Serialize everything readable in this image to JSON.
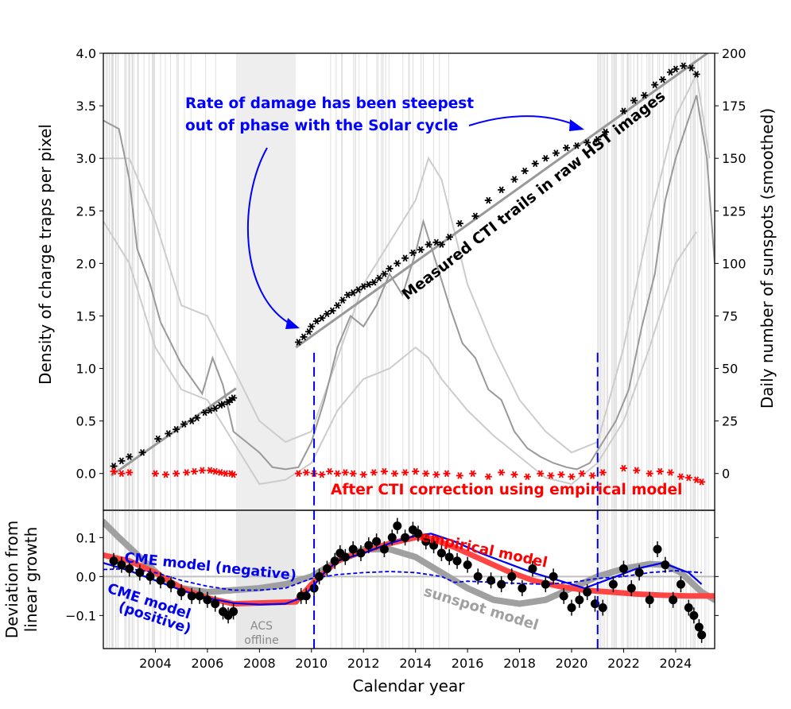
{
  "chart_data": [
    {
      "panel": "top",
      "type": "scatter",
      "xlabel": "",
      "ylabel": "Density of charge traps per pixel",
      "y2label": "Daily number of sunspots (smoothed)",
      "xlim": [
        2002.0,
        2025.5
      ],
      "ylim": [
        -0.35,
        4.0
      ],
      "y2lim": [
        -17.5,
        200
      ],
      "yticks": [
        0.0,
        0.5,
        1.0,
        1.5,
        2.0,
        2.5,
        3.0,
        3.5,
        4.0
      ],
      "ytick_labels": [
        "0.0",
        "0.5",
        "1.0",
        "1.5",
        "2.0",
        "2.5",
        "3.0",
        "3.5",
        "4.0"
      ],
      "y2ticks": [
        0,
        25,
        50,
        75,
        100,
        125,
        150,
        175,
        200
      ],
      "y2tick_labels": [
        "0",
        "25",
        "50",
        "75",
        "100",
        "125",
        "150",
        "175",
        "200"
      ],
      "annotations": {
        "damage_line1": "Rate of damage has been steepest",
        "damage_line2": "out of phase with the Solar cycle",
        "measured": "Measured CTI trails in raw HST images",
        "corrected": "After CTI correction using empirical model"
      },
      "colors": {
        "measured": "#000000",
        "corrected": "#ff0000",
        "annotation": "#0000ff",
        "sunspot": "#999999",
        "sunspot_envelope": "#cccccc",
        "offline_band": "#eeeeee"
      },
      "acs_offline": [
        2007.1,
        2009.4
      ],
      "dashed_lines": [
        2010.1,
        2021.0
      ],
      "trend_lines": [
        {
          "x": [
            2002.3,
            2007.1
          ],
          "y": [
            -0.02,
            0.81
          ]
        },
        {
          "x": [
            2009.4,
            2025.5
          ],
          "y": [
            1.2,
            4.05
          ]
        }
      ],
      "sunspot_smoothed": {
        "x": [
          2002.0,
          2002.6,
          2003.0,
          2003.3,
          2003.8,
          2004.2,
          2004.6,
          2005.0,
          2005.4,
          2005.8,
          2006.2,
          2006.6,
          2007.0,
          2007.5,
          2008.0,
          2008.5,
          2009.0,
          2009.5,
          2010.0,
          2010.5,
          2011.0,
          2011.5,
          2012.0,
          2012.5,
          2013.0,
          2013.5,
          2014.0,
          2014.3,
          2014.8,
          2015.3,
          2015.8,
          2016.3,
          2016.8,
          2017.3,
          2017.8,
          2018.3,
          2018.8,
          2019.3,
          2019.8,
          2020.2,
          2020.7,
          2021.2,
          2021.7,
          2022.2,
          2022.7,
          2023.2,
          2023.6,
          2024.0,
          2024.4,
          2024.8,
          2025.2,
          2025.5
        ],
        "y": [
          168,
          164,
          140,
          107,
          90,
          72,
          62,
          52,
          45,
          38,
          55,
          42,
          20,
          15,
          10,
          3,
          2,
          3,
          15,
          35,
          60,
          75,
          70,
          80,
          95,
          85,
          105,
          120,
          100,
          80,
          62,
          55,
          40,
          35,
          20,
          12,
          8,
          5,
          3,
          2,
          5,
          15,
          25,
          40,
          70,
          95,
          130,
          150,
          165,
          180,
          150,
          100
        ]
      },
      "sunspot_envelope_upper": {
        "x": [
          2002.0,
          2003.0,
          2004.0,
          2005.0,
          2006.0,
          2007.0,
          2008.0,
          2009.0,
          2010.0,
          2011.0,
          2012.0,
          2013.0,
          2014.0,
          2014.5,
          2015.0,
          2016.0,
          2017.0,
          2018.0,
          2019.0,
          2020.0,
          2021.0,
          2022.0,
          2023.0,
          2024.0,
          2024.8,
          2025.3
        ],
        "y": [
          150,
          150,
          120,
          80,
          75,
          50,
          25,
          15,
          20,
          55,
          90,
          110,
          130,
          150,
          140,
          90,
          60,
          35,
          20,
          10,
          15,
          60,
          120,
          170,
          190,
          150
        ]
      },
      "sunspot_envelope_lower": {
        "x": [
          2002.0,
          2003.0,
          2004.0,
          2005.0,
          2006.0,
          2007.0,
          2008.0,
          2009.0,
          2010.0,
          2011.0,
          2012.0,
          2013.0,
          2014.0,
          2014.5,
          2015.0,
          2016.0,
          2017.0,
          2018.0,
          2019.0,
          2020.0,
          2021.0,
          2022.0,
          2023.0,
          2024.0,
          2024.8
        ],
        "y": [
          120,
          100,
          60,
          40,
          35,
          15,
          -5,
          -3,
          5,
          30,
          45,
          50,
          60,
          55,
          45,
          30,
          18,
          8,
          -2,
          -5,
          5,
          25,
          60,
          100,
          115
        ]
      },
      "measured_points": {
        "x": [
          2002.4,
          2002.7,
          2003.0,
          2003.5,
          2004.1,
          2004.5,
          2004.8,
          2005.1,
          2005.4,
          2005.6,
          2005.9,
          2006.1,
          2006.3,
          2006.5,
          2006.6,
          2006.8,
          2006.9,
          2007.0,
          2009.5,
          2009.7,
          2009.9,
          2010.0,
          2010.2,
          2010.4,
          2010.6,
          2010.8,
          2011.0,
          2011.2,
          2011.4,
          2011.6,
          2011.8,
          2012.0,
          2012.2,
          2012.4,
          2012.6,
          2012.8,
          2013.0,
          2013.3,
          2013.6,
          2013.9,
          2014.2,
          2014.5,
          2014.8,
          2015.0,
          2015.3,
          2015.7,
          2016.3,
          2016.8,
          2017.3,
          2017.8,
          2018.2,
          2018.6,
          2019.0,
          2019.4,
          2019.8,
          2020.2,
          2020.6,
          2021.0,
          2021.3,
          2022.0,
          2022.4,
          2022.8,
          2023.2,
          2023.5,
          2023.8,
          2024.0,
          2024.3,
          2024.6,
          2024.8
        ],
        "y": [
          0.07,
          0.12,
          0.16,
          0.2,
          0.33,
          0.38,
          0.42,
          0.47,
          0.5,
          0.53,
          0.58,
          0.6,
          0.62,
          0.65,
          0.66,
          0.68,
          0.7,
          0.72,
          1.25,
          1.3,
          1.35,
          1.4,
          1.45,
          1.48,
          1.52,
          1.55,
          1.6,
          1.65,
          1.7,
          1.72,
          1.75,
          1.78,
          1.8,
          1.82,
          1.86,
          1.9,
          1.95,
          2.0,
          2.05,
          2.1,
          2.13,
          2.18,
          2.2,
          2.18,
          2.25,
          2.38,
          2.45,
          2.6,
          2.7,
          2.8,
          2.88,
          2.95,
          3.0,
          3.05,
          3.1,
          3.12,
          3.15,
          3.18,
          3.25,
          3.45,
          3.55,
          3.6,
          3.7,
          3.75,
          3.82,
          3.85,
          3.88,
          3.86,
          3.8
        ]
      },
      "corrected_points": {
        "x": [
          2002.4,
          2002.7,
          2003.0,
          2004.0,
          2004.4,
          2004.8,
          2005.2,
          2005.5,
          2005.8,
          2006.1,
          2006.3,
          2006.5,
          2006.7,
          2006.9,
          2007.0,
          2009.5,
          2009.8,
          2010.1,
          2010.4,
          2010.7,
          2011.0,
          2011.3,
          2011.6,
          2012.0,
          2012.4,
          2012.8,
          2013.2,
          2013.6,
          2014.0,
          2014.4,
          2014.8,
          2015.2,
          2015.7,
          2016.2,
          2016.8,
          2017.3,
          2017.8,
          2018.3,
          2018.8,
          2019.2,
          2019.6,
          2020.0,
          2020.4,
          2020.8,
          2021.2,
          2022.0,
          2022.5,
          2023.0,
          2023.4,
          2023.8,
          2024.2,
          2024.5,
          2024.8,
          2025.0
        ],
        "y": [
          0.02,
          0.0,
          0.01,
          0.0,
          -0.01,
          0.0,
          0.01,
          0.02,
          0.03,
          0.03,
          0.02,
          0.01,
          0.0,
          0.0,
          -0.01,
          0.0,
          0.01,
          0.0,
          -0.01,
          0.02,
          0.0,
          0.01,
          0.0,
          -0.01,
          0.01,
          0.02,
          0.0,
          0.01,
          0.02,
          0.0,
          -0.01,
          0.0,
          -0.02,
          0.0,
          -0.03,
          0.01,
          -0.01,
          -0.03,
          0.0,
          -0.02,
          -0.01,
          -0.03,
          0.0,
          -0.02,
          0.01,
          0.05,
          0.03,
          0.0,
          0.02,
          0.01,
          -0.03,
          -0.04,
          -0.06,
          -0.08
        ]
      }
    },
    {
      "panel": "bottom",
      "type": "scatter",
      "xlabel": "Calendar year",
      "ylabel_line1": "Deviation from",
      "ylabel_line2": "linear growth",
      "xlim": [
        2002.0,
        2025.5
      ],
      "ylim": [
        -0.185,
        0.17
      ],
      "xticks": [
        2004,
        2006,
        2008,
        2010,
        2012,
        2014,
        2016,
        2018,
        2020,
        2022,
        2024
      ],
      "xtick_labels": [
        "2004",
        "2006",
        "2008",
        "2010",
        "2012",
        "2014",
        "2016",
        "2018",
        "2020",
        "2022",
        "2024"
      ],
      "yticks": [
        -0.1,
        0.0,
        0.1
      ],
      "ytick_labels": [
        "−0.1",
        "0.0",
        "0.1"
      ],
      "labels": {
        "empirical": "empirical model",
        "sunspot": "sunspot model",
        "cme_neg": "CME model (negative)",
        "cme_pos_1": "CME model",
        "cme_pos_2": "(positive)",
        "acs_1": "ACS",
        "acs_2": "offline"
      },
      "colors": {
        "empirical": "#ff4444",
        "sunspot": "#a0a0a0",
        "cme": "#0000ee",
        "points": "#000000",
        "offline_band": "#e8e8e8"
      },
      "acs_offline": [
        2007.1,
        2009.4
      ],
      "dashed_lines": [
        2010.1,
        2021.0
      ],
      "series": [
        {
          "name": "empirical model",
          "x": [
            2002.0,
            2003.0,
            2004.0,
            2005.0,
            2006.0,
            2007.0,
            2009.4,
            2010.0,
            2011.0,
            2012.0,
            2013.0,
            2014.0,
            2014.5,
            2015.5,
            2016.5,
            2017.5,
            2018.5,
            2019.5,
            2020.5,
            2021.5,
            2022.5,
            2023.5,
            2024.5,
            2025.5
          ],
          "y": [
            0.055,
            0.04,
            0.01,
            -0.03,
            -0.055,
            -0.07,
            -0.065,
            -0.02,
            0.04,
            0.065,
            0.085,
            0.1,
            0.1,
            0.075,
            0.045,
            0.015,
            -0.01,
            -0.025,
            -0.035,
            -0.04,
            -0.045,
            -0.048,
            -0.05,
            -0.05
          ]
        },
        {
          "name": "sunspot model",
          "x": [
            2002.0,
            2002.6,
            2003.4,
            2004.2,
            2005.0,
            2006.0,
            2007.0,
            2008.0,
            2009.0,
            2010.0,
            2011.0,
            2012.0,
            2013.0,
            2014.0,
            2015.0,
            2016.0,
            2017.0,
            2018.0,
            2019.0,
            2020.0,
            2021.0,
            2022.0,
            2023.0,
            2023.6,
            2024.2,
            2025.0,
            2025.5
          ],
          "y": [
            0.14,
            0.1,
            0.05,
            0.0,
            -0.03,
            -0.04,
            -0.035,
            -0.03,
            -0.02,
            0.0,
            0.04,
            0.07,
            0.07,
            0.05,
            0.01,
            -0.03,
            -0.06,
            -0.07,
            -0.06,
            -0.03,
            0.0,
            0.02,
            0.032,
            0.03,
            0.01,
            -0.04,
            -0.06
          ]
        },
        {
          "name": "CME model (negative)",
          "x": [
            2002.0,
            2003.0,
            2004.0,
            2005.0,
            2006.0,
            2007.0,
            2008.0,
            2009.0,
            2010.0,
            2011.0,
            2012.0,
            2013.0,
            2014.0,
            2015.0,
            2015.5,
            2016.0,
            2017.0,
            2018.0,
            2019.0,
            2020.0,
            2021.0,
            2022.0,
            2023.0,
            2024.0,
            2025.0
          ],
          "y": [
            0.018,
            0.02,
            0.01,
            -0.01,
            -0.025,
            -0.035,
            -0.035,
            -0.03,
            -0.005,
            0.005,
            0.01,
            0.013,
            0.01,
            0.0,
            -0.015,
            -0.012,
            -0.015,
            -0.018,
            -0.02,
            -0.015,
            -0.005,
            0.0,
            0.01,
            0.015,
            0.01
          ]
        },
        {
          "name": "CME model (positive)",
          "x": [
            2002.0,
            2003.0,
            2004.0,
            2005.0,
            2006.0,
            2007.0,
            2008.0,
            2009.0,
            2009.6,
            2010.0,
            2010.5,
            2011.0,
            2012.0,
            2013.0,
            2014.0,
            2014.6,
            2015.5,
            2016.5,
            2017.5,
            2018.5,
            2019.5,
            2020.5,
            2021.5,
            2022.5,
            2023.5,
            2024.5,
            2025.0
          ],
          "y": [
            0.035,
            0.015,
            -0.01,
            -0.035,
            -0.055,
            -0.068,
            -0.072,
            -0.07,
            -0.055,
            -0.03,
            0.01,
            0.04,
            0.06,
            0.085,
            0.105,
            0.11,
            0.09,
            0.06,
            0.035,
            0.01,
            -0.01,
            -0.03,
            -0.005,
            0.02,
            0.035,
            0.01,
            -0.02
          ]
        }
      ],
      "points": {
        "x": [
          2002.4,
          2002.7,
          2003.0,
          2003.4,
          2003.8,
          2004.2,
          2004.6,
          2005.0,
          2005.4,
          2005.7,
          2006.0,
          2006.3,
          2006.6,
          2006.8,
          2007.0,
          2009.6,
          2009.8,
          2010.1,
          2010.3,
          2010.6,
          2010.9,
          2011.1,
          2011.3,
          2011.6,
          2011.9,
          2012.2,
          2012.5,
          2012.8,
          2013.1,
          2013.3,
          2013.6,
          2013.9,
          2014.1,
          2014.4,
          2014.7,
          2015.0,
          2015.3,
          2015.6,
          2016.0,
          2016.4,
          2016.9,
          2017.3,
          2017.7,
          2018.1,
          2018.5,
          2019.0,
          2019.3,
          2019.7,
          2020.0,
          2020.3,
          2020.6,
          2020.9,
          2021.2,
          2021.6,
          2022.0,
          2022.3,
          2022.6,
          2023.0,
          2023.3,
          2023.6,
          2023.9,
          2024.2,
          2024.5,
          2024.7,
          2024.9,
          2025.0
        ],
        "y": [
          0.04,
          0.03,
          0.02,
          0.01,
          0.0,
          -0.01,
          -0.02,
          -0.04,
          -0.05,
          -0.05,
          -0.06,
          -0.07,
          -0.09,
          -0.1,
          -0.09,
          -0.05,
          -0.05,
          -0.03,
          0.0,
          0.02,
          0.04,
          0.06,
          0.05,
          0.07,
          0.06,
          0.08,
          0.09,
          0.07,
          0.1,
          0.13,
          0.1,
          0.12,
          0.11,
          0.09,
          0.08,
          0.06,
          0.05,
          0.04,
          0.03,
          0.0,
          -0.01,
          -0.02,
          0.0,
          -0.03,
          0.02,
          -0.02,
          0.0,
          -0.05,
          -0.08,
          -0.06,
          -0.04,
          -0.07,
          -0.08,
          -0.02,
          0.02,
          -0.03,
          0.01,
          -0.06,
          0.07,
          0.03,
          -0.06,
          -0.02,
          -0.08,
          -0.1,
          -0.13,
          -0.15
        ]
      }
    }
  ]
}
